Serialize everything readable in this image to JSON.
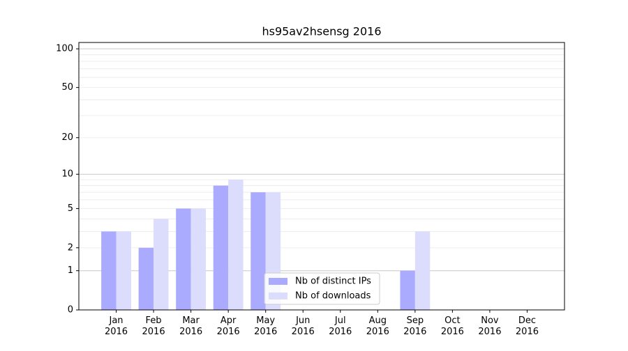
{
  "chart_data": {
    "type": "bar",
    "title": "hs95av2hsensg 2016",
    "categories": [
      "Jan\n2016",
      "Feb\n2016",
      "Mar\n2016",
      "Apr\n2016",
      "May\n2016",
      "Jun\n2016",
      "Jul\n2016",
      "Aug\n2016",
      "Sep\n2016",
      "Oct\n2016",
      "Nov\n2016",
      "Dec\n2016"
    ],
    "series": [
      {
        "name": "Nb of distinct IPs",
        "color": "#aaaaff",
        "values": [
          3,
          2,
          5,
          8,
          7,
          0,
          0,
          0,
          1,
          0,
          0,
          0
        ]
      },
      {
        "name": "Nb of downloads",
        "color": "#dcdcfc",
        "values": [
          3,
          4,
          5,
          9,
          7,
          0,
          0,
          0,
          3,
          0,
          0,
          0
        ]
      }
    ],
    "yscale": "log1p",
    "ylim": [
      0,
      112
    ],
    "yticks": [
      0,
      1,
      2,
      5,
      10,
      20,
      50,
      100
    ],
    "major_grid": [
      1,
      10,
      100
    ],
    "minor_grid": [
      3,
      4,
      6,
      7,
      8,
      9,
      30,
      40,
      60,
      70,
      80,
      90
    ],
    "legend": "lower center"
  }
}
